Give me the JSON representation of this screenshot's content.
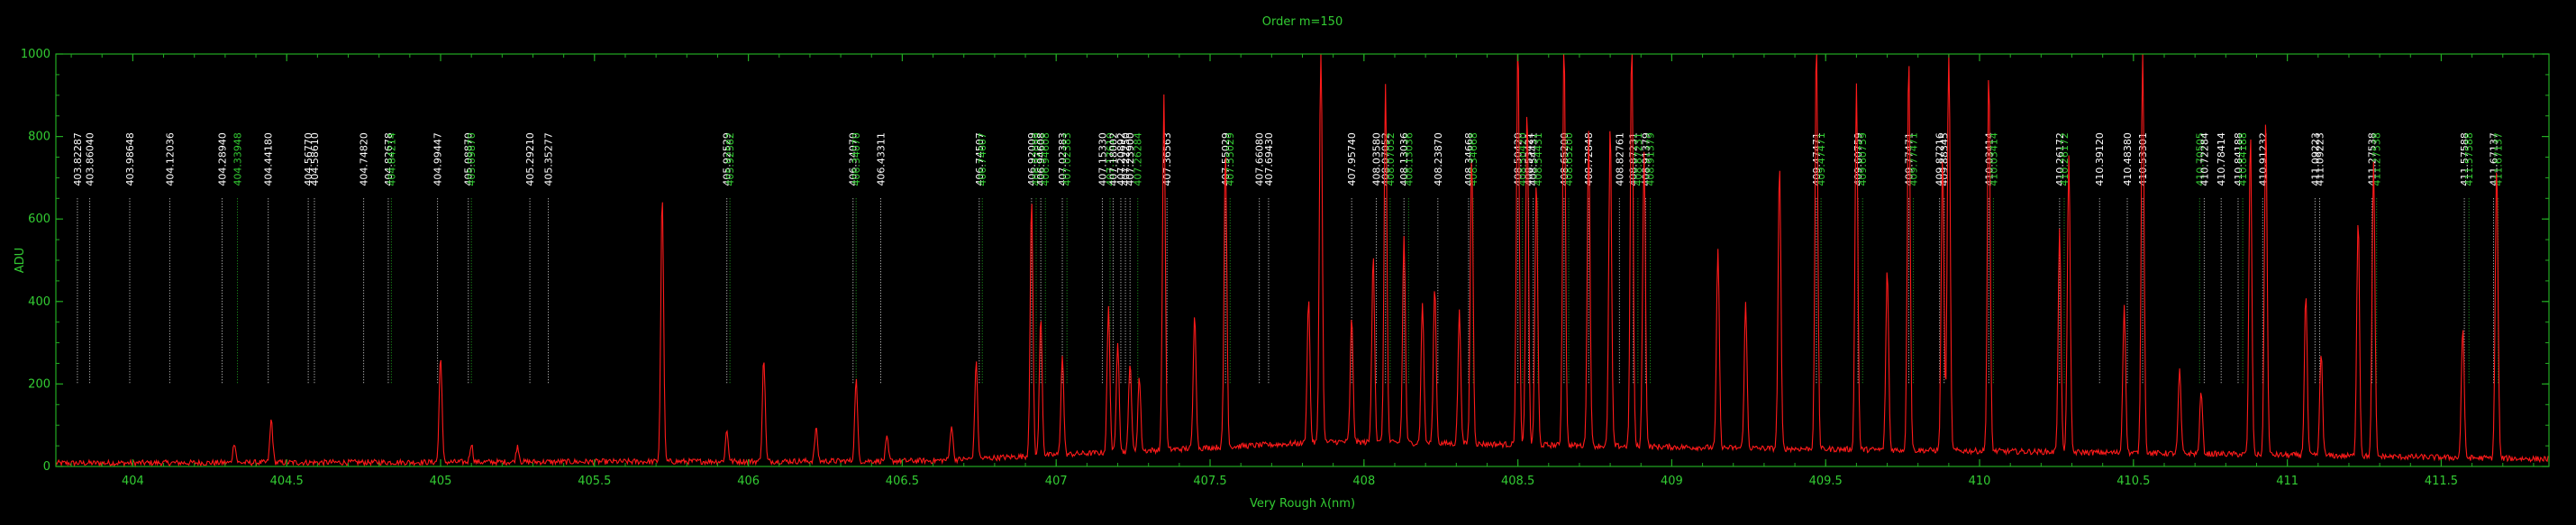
{
  "chart_data": {
    "type": "line",
    "title": "Order m=150",
    "xlabel": "Very Rough λ(nm)",
    "ylabel": "ADU",
    "xlim": [
      403.75,
      411.85
    ],
    "ylim": [
      0,
      1000
    ],
    "x_ticks": [
      "404",
      "404.5",
      "405",
      "405.5",
      "406",
      "406.5",
      "407",
      "407.5",
      "408",
      "408.5",
      "409",
      "409.5",
      "410",
      "410.5",
      "411",
      "411.5"
    ],
    "y_ticks": [
      "0",
      "200",
      "400",
      "600",
      "800",
      "1000"
    ],
    "grid": false,
    "colors": {
      "axes": "#22aa22",
      "spectrum": "#ff1a1a",
      "white_label": "#ffffff",
      "green_label": "#33cc33",
      "white_line": "#dddddd",
      "green_line": "#22aa22"
    },
    "series": [
      {
        "peaks": [
          {
            "x": 404.33,
            "y": 50
          },
          {
            "x": 404.45,
            "y": 105
          },
          {
            "x": 405.0,
            "y": 260
          },
          {
            "x": 405.1,
            "y": 45
          },
          {
            "x": 405.25,
            "y": 40
          },
          {
            "x": 405.72,
            "y": 650
          },
          {
            "x": 405.93,
            "y": 75
          },
          {
            "x": 406.05,
            "y": 250
          },
          {
            "x": 406.22,
            "y": 80
          },
          {
            "x": 406.35,
            "y": 200
          },
          {
            "x": 406.45,
            "y": 55
          },
          {
            "x": 406.66,
            "y": 85
          },
          {
            "x": 406.74,
            "y": 235
          },
          {
            "x": 406.92,
            "y": 620
          },
          {
            "x": 406.95,
            "y": 340
          },
          {
            "x": 407.02,
            "y": 240
          },
          {
            "x": 407.17,
            "y": 350
          },
          {
            "x": 407.2,
            "y": 270
          },
          {
            "x": 407.24,
            "y": 220
          },
          {
            "x": 407.27,
            "y": 180
          },
          {
            "x": 407.35,
            "y": 860
          },
          {
            "x": 407.45,
            "y": 330
          },
          {
            "x": 407.55,
            "y": 720
          },
          {
            "x": 407.82,
            "y": 350
          },
          {
            "x": 407.86,
            "y": 1000
          },
          {
            "x": 407.96,
            "y": 300
          },
          {
            "x": 408.03,
            "y": 460
          },
          {
            "x": 408.07,
            "y": 870
          },
          {
            "x": 408.13,
            "y": 500
          },
          {
            "x": 408.19,
            "y": 340
          },
          {
            "x": 408.23,
            "y": 380
          },
          {
            "x": 408.31,
            "y": 320
          },
          {
            "x": 408.35,
            "y": 700
          },
          {
            "x": 408.5,
            "y": 1000
          },
          {
            "x": 408.53,
            "y": 820
          },
          {
            "x": 408.56,
            "y": 640
          },
          {
            "x": 408.65,
            "y": 1000
          },
          {
            "x": 408.73,
            "y": 760
          },
          {
            "x": 408.8,
            "y": 780
          },
          {
            "x": 408.87,
            "y": 1000
          },
          {
            "x": 408.91,
            "y": 720
          },
          {
            "x": 409.15,
            "y": 480
          },
          {
            "x": 409.24,
            "y": 350
          },
          {
            "x": 409.35,
            "y": 690
          },
          {
            "x": 409.47,
            "y": 1000
          },
          {
            "x": 409.6,
            "y": 890
          },
          {
            "x": 409.7,
            "y": 440
          },
          {
            "x": 409.77,
            "y": 960
          },
          {
            "x": 409.88,
            "y": 720
          },
          {
            "x": 409.9,
            "y": 1000
          },
          {
            "x": 410.03,
            "y": 920
          },
          {
            "x": 410.26,
            "y": 540
          },
          {
            "x": 410.29,
            "y": 720
          },
          {
            "x": 410.47,
            "y": 360
          },
          {
            "x": 410.53,
            "y": 1000
          },
          {
            "x": 410.65,
            "y": 200
          },
          {
            "x": 410.72,
            "y": 150
          },
          {
            "x": 410.88,
            "y": 780
          },
          {
            "x": 410.93,
            "y": 820
          },
          {
            "x": 411.06,
            "y": 390
          },
          {
            "x": 411.11,
            "y": 250
          },
          {
            "x": 411.23,
            "y": 580
          },
          {
            "x": 411.28,
            "y": 720
          },
          {
            "x": 411.57,
            "y": 320
          },
          {
            "x": 411.68,
            "y": 710
          }
        ]
      }
    ],
    "line_ids": [
      {
        "x": 403.82,
        "label": "403.82287",
        "color": "white"
      },
      {
        "x": 403.86,
        "label": "403.86040",
        "color": "white"
      },
      {
        "x": 403.99,
        "label": "403.98648",
        "color": "white"
      },
      {
        "x": 404.12,
        "label": "404.12036",
        "color": "white"
      },
      {
        "x": 404.29,
        "label": "404.28940",
        "color": "white"
      },
      {
        "x": 404.34,
        "label": "404.33948",
        "color": "green"
      },
      {
        "x": 404.44,
        "label": "404.44180",
        "color": "white"
      },
      {
        "x": 404.57,
        "label": "404.56770",
        "color": "white"
      },
      {
        "x": 404.59,
        "label": "404.58610",
        "color": "white"
      },
      {
        "x": 404.75,
        "label": "404.74820",
        "color": "white"
      },
      {
        "x": 404.83,
        "label": "404.82678",
        "color": "white"
      },
      {
        "x": 404.84,
        "label": "404.84214",
        "color": "green"
      },
      {
        "x": 404.99,
        "label": "404.99447",
        "color": "white"
      },
      {
        "x": 405.09,
        "label": "405.08870",
        "color": "white"
      },
      {
        "x": 405.1,
        "label": "405.09870",
        "color": "green"
      },
      {
        "x": 405.29,
        "label": "405.29210",
        "color": "white"
      },
      {
        "x": 405.35,
        "label": "405.35277",
        "color": "white"
      },
      {
        "x": 405.93,
        "label": "405.92529",
        "color": "white"
      },
      {
        "x": 405.94,
        "label": "405.92582",
        "color": "green"
      },
      {
        "x": 406.34,
        "label": "406.34070",
        "color": "white"
      },
      {
        "x": 406.35,
        "label": "406.34070",
        "color": "green"
      },
      {
        "x": 406.43,
        "label": "406.43311",
        "color": "white"
      },
      {
        "x": 406.75,
        "label": "406.74507",
        "color": "white"
      },
      {
        "x": 406.76,
        "label": "406.74607",
        "color": "green"
      },
      {
        "x": 406.92,
        "label": "406.92009",
        "color": "white"
      },
      {
        "x": 406.935,
        "label": "406.92099",
        "color": "green"
      },
      {
        "x": 406.95,
        "label": "406.94608",
        "color": "white"
      },
      {
        "x": 406.965,
        "label": "406.94608",
        "color": "green"
      },
      {
        "x": 407.02,
        "label": "407.02383",
        "color": "white"
      },
      {
        "x": 407.035,
        "label": "407.02383",
        "color": "green"
      },
      {
        "x": 407.15,
        "label": "407.15330",
        "color": "white"
      },
      {
        "x": 407.175,
        "label": "407.17610",
        "color": "green"
      },
      {
        "x": 407.185,
        "label": "407.18002",
        "color": "white"
      },
      {
        "x": 407.21,
        "label": "407.20892",
        "color": "white"
      },
      {
        "x": 407.225,
        "label": "407.22250",
        "color": "white"
      },
      {
        "x": 407.24,
        "label": "407.23900",
        "color": "white"
      },
      {
        "x": 407.265,
        "label": "407.26284",
        "color": "green"
      },
      {
        "x": 407.36,
        "label": "407.36563",
        "color": "white"
      },
      {
        "x": 407.55,
        "label": "407.55029",
        "color": "white"
      },
      {
        "x": 407.565,
        "label": "407.55029",
        "color": "green"
      },
      {
        "x": 407.66,
        "label": "407.66080",
        "color": "white"
      },
      {
        "x": 407.69,
        "label": "407.69430",
        "color": "white"
      },
      {
        "x": 407.96,
        "label": "407.95740",
        "color": "white"
      },
      {
        "x": 408.04,
        "label": "408.03580",
        "color": "white"
      },
      {
        "x": 408.07,
        "label": "408.07052",
        "color": "white"
      },
      {
        "x": 408.085,
        "label": "408.07052",
        "color": "green"
      },
      {
        "x": 408.13,
        "label": "408.13036",
        "color": "white"
      },
      {
        "x": 408.145,
        "label": "408.13036",
        "color": "green"
      },
      {
        "x": 408.24,
        "label": "408.23870",
        "color": "white"
      },
      {
        "x": 408.34,
        "label": "408.34668",
        "color": "white"
      },
      {
        "x": 408.355,
        "label": "408.34668",
        "color": "green"
      },
      {
        "x": 408.5,
        "label": "408.50420",
        "color": "white"
      },
      {
        "x": 408.515,
        "label": "408.50420",
        "color": "green"
      },
      {
        "x": 408.535,
        "label": "408.53421",
        "color": "white"
      },
      {
        "x": 408.55,
        "label": "408.54431",
        "color": "white"
      },
      {
        "x": 408.565,
        "label": "408.54431",
        "color": "green"
      },
      {
        "x": 408.65,
        "label": "408.65200",
        "color": "white"
      },
      {
        "x": 408.665,
        "label": "408.65200",
        "color": "green"
      },
      {
        "x": 408.73,
        "label": "408.72848",
        "color": "white"
      },
      {
        "x": 408.83,
        "label": "408.82761",
        "color": "white"
      },
      {
        "x": 408.875,
        "label": "408.87231",
        "color": "white"
      },
      {
        "x": 408.89,
        "label": "408.87231",
        "color": "green"
      },
      {
        "x": 408.915,
        "label": "408.91379",
        "color": "white"
      },
      {
        "x": 408.93,
        "label": "408.91379",
        "color": "green"
      },
      {
        "x": 409.47,
        "label": "409.47471",
        "color": "white"
      },
      {
        "x": 409.485,
        "label": "409.47471",
        "color": "green"
      },
      {
        "x": 409.605,
        "label": "409.60759",
        "color": "white"
      },
      {
        "x": 409.62,
        "label": "409.60759",
        "color": "green"
      },
      {
        "x": 409.77,
        "label": "409.77471",
        "color": "white"
      },
      {
        "x": 409.785,
        "label": "409.77471",
        "color": "green"
      },
      {
        "x": 409.87,
        "label": "409.87216",
        "color": "white"
      },
      {
        "x": 409.885,
        "label": "409.88345",
        "color": "white"
      },
      {
        "x": 410.03,
        "label": "410.03414",
        "color": "white"
      },
      {
        "x": 410.045,
        "label": "410.03414",
        "color": "green"
      },
      {
        "x": 410.26,
        "label": "410.26172",
        "color": "white"
      },
      {
        "x": 410.275,
        "label": "410.26172",
        "color": "green"
      },
      {
        "x": 410.39,
        "label": "410.39120",
        "color": "white"
      },
      {
        "x": 410.48,
        "label": "410.48380",
        "color": "white"
      },
      {
        "x": 410.53,
        "label": "410.53301",
        "color": "white"
      },
      {
        "x": 410.715,
        "label": "410.70505",
        "color": "green"
      },
      {
        "x": 410.73,
        "label": "410.72284",
        "color": "white"
      },
      {
        "x": 410.785,
        "label": "410.78414",
        "color": "white"
      },
      {
        "x": 410.84,
        "label": "410.84188",
        "color": "white"
      },
      {
        "x": 410.855,
        "label": "410.84188",
        "color": "green"
      },
      {
        "x": 410.92,
        "label": "410.91232",
        "color": "white"
      },
      {
        "x": 411.09,
        "label": "411.09223",
        "color": "white"
      },
      {
        "x": 411.105,
        "label": "411.09223",
        "color": "white"
      },
      {
        "x": 411.275,
        "label": "411.27538",
        "color": "white"
      },
      {
        "x": 411.29,
        "label": "411.27538",
        "color": "green"
      },
      {
        "x": 411.575,
        "label": "411.57588",
        "color": "white"
      },
      {
        "x": 411.59,
        "label": "411.57588",
        "color": "green"
      },
      {
        "x": 411.67,
        "label": "411.67137",
        "color": "white"
      },
      {
        "x": 411.685,
        "label": "411.67137",
        "color": "green"
      }
    ]
  }
}
